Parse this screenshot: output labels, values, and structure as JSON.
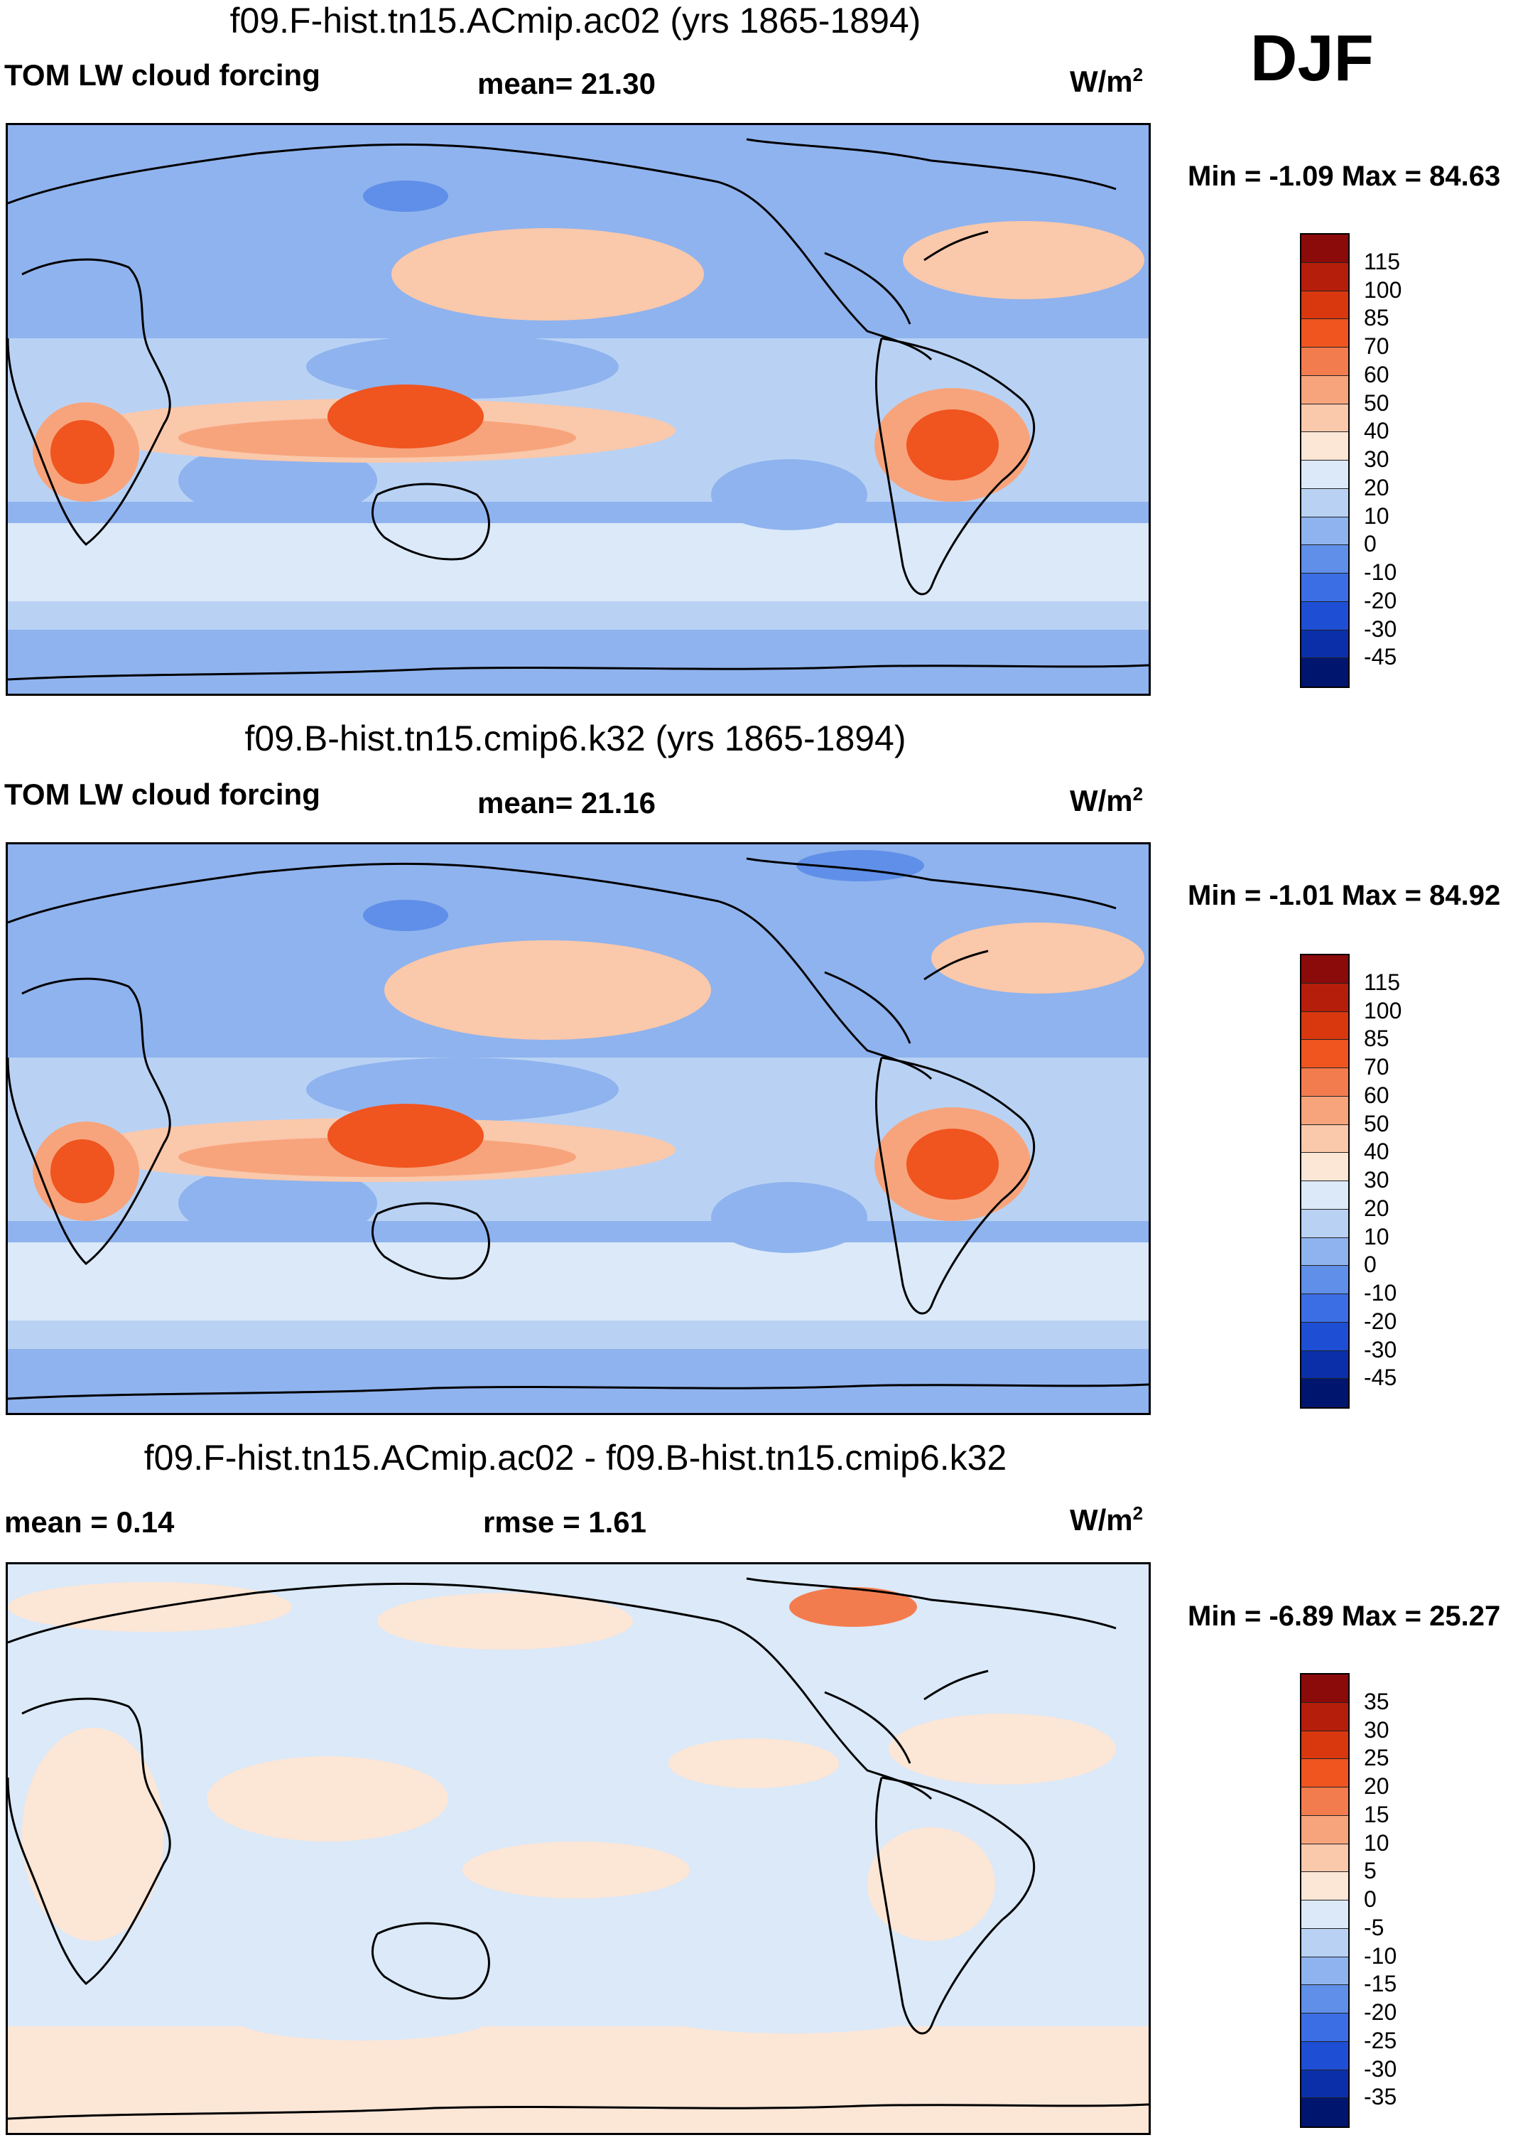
{
  "season": "DJF",
  "panels": [
    {
      "title": "f09.F-hist.tn15.ACmip.ac02 (yrs 1865-1894)",
      "left_label": "TOM LW cloud forcing",
      "center_label": "mean=  21.30",
      "unit": "W/m",
      "unit_exp": "2",
      "minmax": "Min =  -1.09 Max =  84.63",
      "colorbar": {
        "ticks": [
          "115",
          "100",
          "85",
          "70",
          "60",
          "50",
          "40",
          "30",
          "20",
          "10",
          "0",
          "-10",
          "-20",
          "-30",
          "-45"
        ],
        "colors": [
          "#8b0a0a",
          "#b51e0a",
          "#d9380f",
          "#f0541f",
          "#f37c4f",
          "#f7a47c",
          "#fac8ab",
          "#fce6d6",
          "#dbe9f8",
          "#b9d2f4",
          "#8fb3ee",
          "#5f8fe8",
          "#3b6ee4",
          "#1d4ed4",
          "#0a2fa8",
          "#00166e"
        ],
        "map_colors": {
          "background": "#8fb3ee",
          "band_light": "#b9d2f4",
          "band_pale": "#dbe9f8",
          "warm_low": "#fac8ab",
          "warm_mid": "#f7a47c",
          "warm_high": "#f0541f",
          "dark_blue": "#5f8fe8"
        }
      }
    },
    {
      "title": "f09.B-hist.tn15.cmip6.k32 (yrs 1865-1894)",
      "left_label": "TOM LW cloud forcing",
      "center_label": "mean=  21.16",
      "unit": "W/m",
      "unit_exp": "2",
      "minmax": "Min =  -1.01 Max =  84.92",
      "colorbar": {
        "ticks": [
          "115",
          "100",
          "85",
          "70",
          "60",
          "50",
          "40",
          "30",
          "20",
          "10",
          "0",
          "-10",
          "-20",
          "-30",
          "-45"
        ],
        "colors": [
          "#8b0a0a",
          "#b51e0a",
          "#d9380f",
          "#f0541f",
          "#f37c4f",
          "#f7a47c",
          "#fac8ab",
          "#fce6d6",
          "#dbe9f8",
          "#b9d2f4",
          "#8fb3ee",
          "#5f8fe8",
          "#3b6ee4",
          "#1d4ed4",
          "#0a2fa8",
          "#00166e"
        ],
        "map_colors": {
          "background": "#8fb3ee",
          "band_light": "#b9d2f4",
          "band_pale": "#dbe9f8",
          "warm_low": "#fac8ab",
          "warm_mid": "#f7a47c",
          "warm_high": "#f0541f",
          "dark_blue": "#5f8fe8"
        }
      }
    },
    {
      "title": "f09.F-hist.tn15.ACmip.ac02 - f09.B-hist.tn15.cmip6.k32",
      "left_label": "mean =   0.14",
      "center_label": "rmse =   1.61",
      "unit": "W/m",
      "unit_exp": "2",
      "minmax": "Min =  -6.89 Max =  25.27",
      "colorbar": {
        "ticks": [
          "35",
          "30",
          "25",
          "20",
          "15",
          "10",
          "5",
          "0",
          "-5",
          "-10",
          "-15",
          "-20",
          "-25",
          "-30",
          "-35"
        ],
        "colors": [
          "#8b0a0a",
          "#b51e0a",
          "#d9380f",
          "#f0541f",
          "#f37c4f",
          "#f7a47c",
          "#fac8ab",
          "#fce6d6",
          "#dbe9f8",
          "#b9d2f4",
          "#8fb3ee",
          "#5f8fe8",
          "#3b6ee4",
          "#1d4ed4",
          "#0a2fa8",
          "#00166e"
        ],
        "map_colors": {
          "background": "#dbe9f8",
          "warm_low": "#fce6d6",
          "warm_mid": "#f37c4f"
        }
      }
    }
  ]
}
